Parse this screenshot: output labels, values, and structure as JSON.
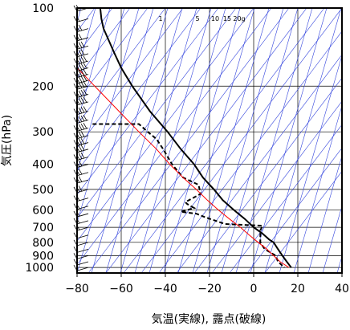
{
  "chart_data": {
    "type": "line",
    "xlabel": "気温(実線), 露点(破線)",
    "ylabel": "気圧(hPa)",
    "xlim": [
      -80,
      40
    ],
    "ylim": [
      1050,
      100
    ],
    "y_scale": "log",
    "x_ticks": [
      "−80",
      "−60",
      "−40",
      "−20",
      "0",
      "20",
      "40"
    ],
    "y_ticks": [
      "100",
      "200",
      "300",
      "400",
      "500",
      "600",
      "700",
      "800",
      "900",
      "1000"
    ],
    "mixing_ratio_labels": [
      "1",
      "5",
      "10",
      "15",
      "20g"
    ],
    "series": [
      {
        "style": "solid",
        "color": "#000000",
        "points": [
          [
            100,
            -69.5
          ],
          [
            110,
            -69
          ],
          [
            120,
            -68
          ],
          [
            150,
            -63
          ],
          [
            170,
            -60
          ],
          [
            200,
            -55
          ],
          [
            250,
            -47
          ],
          [
            300,
            -39
          ],
          [
            350,
            -33
          ],
          [
            400,
            -27
          ],
          [
            450,
            -23
          ],
          [
            500,
            -18
          ],
          [
            550,
            -14
          ],
          [
            600,
            -9
          ],
          [
            650,
            -4
          ],
          [
            700,
            0
          ],
          [
            740,
            4
          ],
          [
            780,
            7
          ],
          [
            800,
            9
          ],
          [
            850,
            11
          ],
          [
            900,
            13
          ],
          [
            950,
            15
          ],
          [
            1000,
            17
          ]
        ]
      },
      {
        "style": "dashed",
        "color": "#000000",
        "points": [
          [
            280,
            -73
          ],
          [
            280,
            -52
          ],
          [
            300,
            -48
          ],
          [
            320,
            -44
          ],
          [
            350,
            -41
          ],
          [
            400,
            -37
          ],
          [
            450,
            -32
          ],
          [
            480,
            -25
          ],
          [
            520,
            -24
          ],
          [
            560,
            -31
          ],
          [
            570,
            -30
          ],
          [
            590,
            -27
          ],
          [
            610,
            -33
          ],
          [
            620,
            -26
          ],
          [
            640,
            -22
          ],
          [
            680,
            -13
          ],
          [
            690,
            4
          ],
          [
            720,
            3
          ],
          [
            760,
            3
          ],
          [
            800,
            3
          ],
          [
            850,
            5
          ],
          [
            900,
            10
          ],
          [
            950,
            11
          ],
          [
            1000,
            14
          ]
        ]
      },
      {
        "style": "solid",
        "color": "#ff0000",
        "points": [
          [
            170,
            -80
          ],
          [
            200,
            -72
          ],
          [
            250,
            -61
          ],
          [
            300,
            -52
          ],
          [
            350,
            -44
          ],
          [
            400,
            -38
          ],
          [
            450,
            -32
          ],
          [
            500,
            -26
          ],
          [
            550,
            -21
          ],
          [
            600,
            -16
          ],
          [
            650,
            -11
          ],
          [
            700,
            -6
          ],
          [
            750,
            -2
          ],
          [
            800,
            2
          ],
          [
            850,
            6
          ],
          [
            900,
            9
          ],
          [
            950,
            12
          ],
          [
            1000,
            16
          ]
        ]
      }
    ],
    "wind_barbs": [
      {
        "p": 100,
        "ws": 15
      },
      {
        "p": 110,
        "ws": 20
      },
      {
        "p": 120,
        "ws": 25
      },
      {
        "p": 130,
        "ws": 30
      },
      {
        "p": 140,
        "ws": 35
      },
      {
        "p": 150,
        "ws": 40
      },
      {
        "p": 160,
        "ws": 45
      },
      {
        "p": 170,
        "ws": 45
      },
      {
        "p": 180,
        "ws": 50
      },
      {
        "p": 190,
        "ws": 50
      },
      {
        "p": 200,
        "ws": 55
      },
      {
        "p": 215,
        "ws": 55
      },
      {
        "p": 230,
        "ws": 50
      },
      {
        "p": 250,
        "ws": 50
      },
      {
        "p": 270,
        "ws": 45
      },
      {
        "p": 290,
        "ws": 45
      },
      {
        "p": 310,
        "ws": 40
      },
      {
        "p": 330,
        "ws": 40
      },
      {
        "p": 350,
        "ws": 35
      },
      {
        "p": 375,
        "ws": 35
      },
      {
        "p": 400,
        "ws": 30
      },
      {
        "p": 430,
        "ws": 30
      },
      {
        "p": 460,
        "ws": 25
      },
      {
        "p": 500,
        "ws": 25
      },
      {
        "p": 540,
        "ws": 20
      },
      {
        "p": 580,
        "ws": 20
      },
      {
        "p": 620,
        "ws": 15
      },
      {
        "p": 660,
        "ws": 15
      },
      {
        "p": 700,
        "ws": 15
      },
      {
        "p": 750,
        "ws": 10
      },
      {
        "p": 800,
        "ws": 10
      },
      {
        "p": 850,
        "ws": 10
      },
      {
        "p": 900,
        "ws": 10
      },
      {
        "p": 950,
        "ws": 10
      },
      {
        "p": 1000,
        "ws": 10
      }
    ],
    "grid": true
  }
}
